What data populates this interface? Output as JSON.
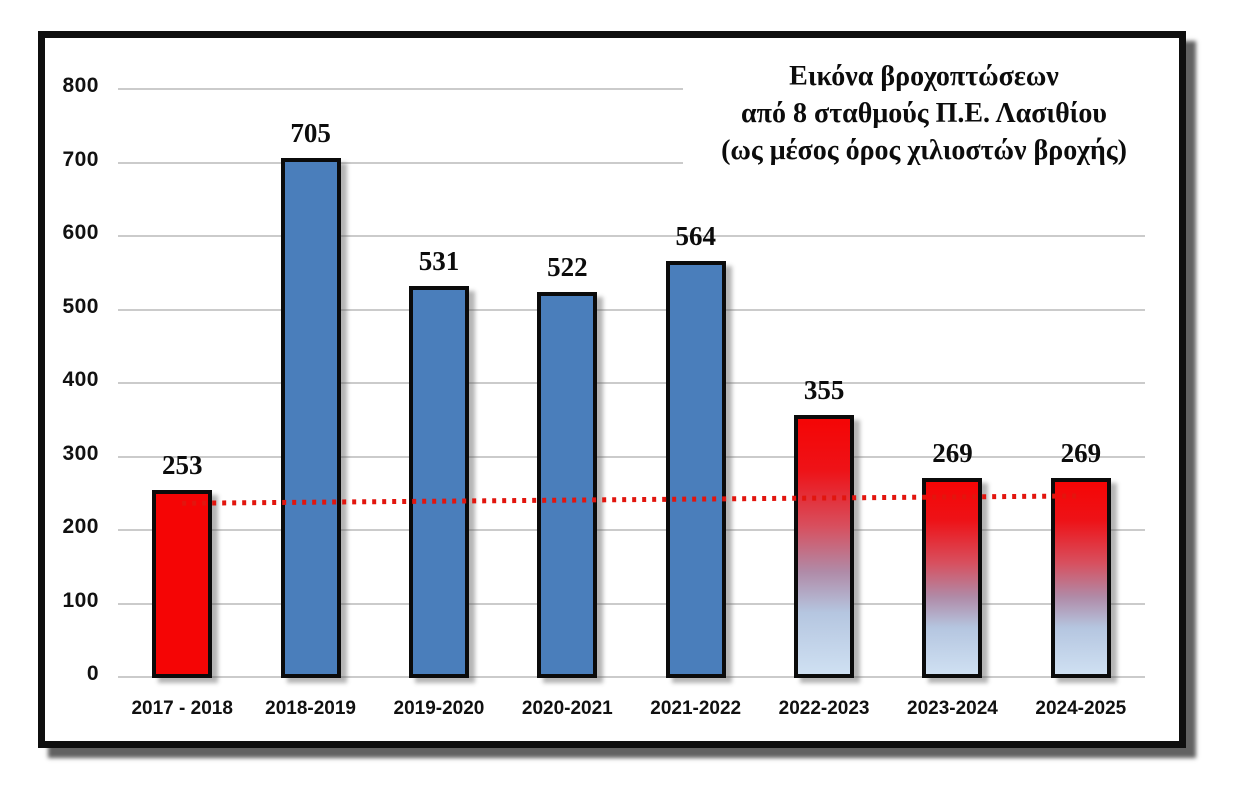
{
  "chart_data": {
    "type": "bar",
    "title_lines": [
      "Εικόνα βροχοπτώσεων",
      "από 8 σταθμούς Π.Ε. Λασιθίου",
      "(ως μέσος όρος χιλιοστών βροχής)"
    ],
    "categories": [
      "2017 - 2018",
      "2018-2019",
      "2019-2020",
      "2020-2021",
      "2021-2022",
      "2022-2023",
      "2023-2024",
      "2024-2025"
    ],
    "values": [
      253,
      705,
      531,
      522,
      564,
      355,
      269,
      269
    ],
    "bar_styles": [
      "red",
      "blue",
      "blue",
      "blue",
      "blue",
      "gradient",
      "gradient",
      "gradient"
    ],
    "xlabel": "",
    "ylabel": "",
    "ylim": [
      0,
      800
    ],
    "yticks": [
      0,
      100,
      200,
      300,
      400,
      500,
      600,
      700,
      800
    ],
    "grid": true,
    "legend": "none",
    "trend_line": {
      "style": "dotted",
      "color": "#e2150e",
      "start_value": 235,
      "end_value": 245
    },
    "colors": {
      "red_bar": "#f50505",
      "blue_bar": "#4a7ebb",
      "bar_border": "#0b0b0b",
      "gridline": "#cbcbcb",
      "frame_border": "#0f0f0f",
      "gradient_stops": [
        "#f50505 0%",
        "#ee1217 20%",
        "#d84f5e 42%",
        "#b08ba8 60%",
        "#b5c6e0 76%",
        "#cfe0f2 100%"
      ]
    }
  }
}
